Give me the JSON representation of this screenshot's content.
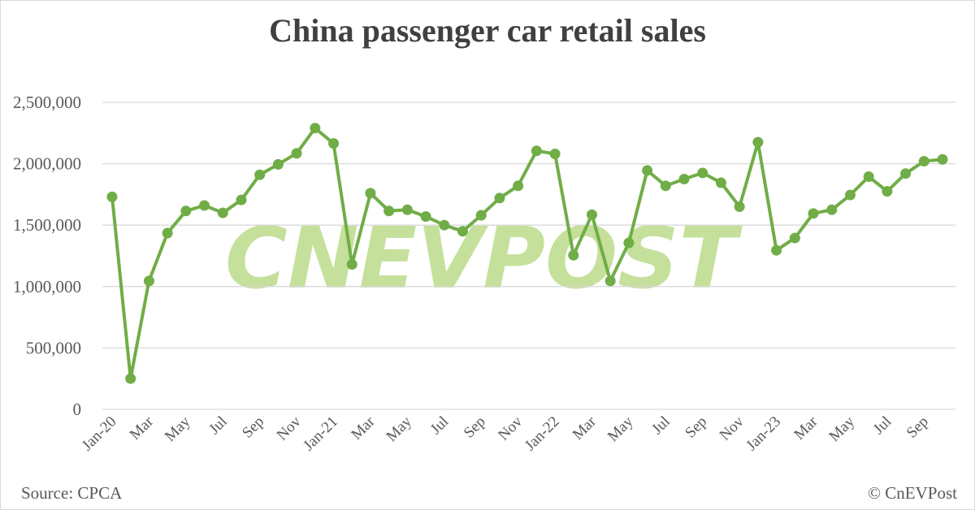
{
  "title": "China passenger car retail sales",
  "source": "Source: CPCA",
  "copyright": "© CnEVPost",
  "watermark": "CNEVPOST",
  "colors": {
    "line": "#70ad47",
    "watermark": "#c5e09b",
    "gridline": "#d9d9d9",
    "text": "#595959",
    "title": "#404040"
  },
  "y_axis": {
    "ticks": [
      "0",
      "500,000",
      "1,000,000",
      "1,500,000",
      "2,000,000",
      "2,500,000"
    ]
  },
  "x_axis": {
    "tick_labels": [
      "Jan-20",
      "Mar",
      "May",
      "Jul",
      "Sep",
      "Nov",
      "Jan-21",
      "Mar",
      "May",
      "Jul",
      "Sep",
      "Nov",
      "Jan-22",
      "Mar",
      "May",
      "Jul",
      "Sep",
      "Nov",
      "Jan-23",
      "Mar",
      "May",
      "Jul",
      "Sep"
    ]
  },
  "chart_data": {
    "type": "line",
    "title": "China passenger car retail sales",
    "xlabel": "",
    "ylabel": "",
    "ylim": [
      0,
      2500000
    ],
    "grid": true,
    "legend": null,
    "x": [
      "Jan-20",
      "Feb-20",
      "Mar-20",
      "Apr-20",
      "May-20",
      "Jun-20",
      "Jul-20",
      "Aug-20",
      "Sep-20",
      "Oct-20",
      "Nov-20",
      "Dec-20",
      "Jan-21",
      "Feb-21",
      "Mar-21",
      "Apr-21",
      "May-21",
      "Jun-21",
      "Jul-21",
      "Aug-21",
      "Sep-21",
      "Oct-21",
      "Nov-21",
      "Dec-21",
      "Jan-22",
      "Feb-22",
      "Mar-22",
      "Apr-22",
      "May-22",
      "Jun-22",
      "Jul-22",
      "Aug-22",
      "Sep-22",
      "Oct-22",
      "Nov-22",
      "Dec-22",
      "Jan-23",
      "Feb-23",
      "Mar-23",
      "Apr-23",
      "May-23",
      "Jun-23",
      "Jul-23",
      "Aug-23",
      "Sep-23",
      "Oct-23"
    ],
    "series": [
      {
        "name": "Retail sales",
        "values": [
          1730000,
          250000,
          1045000,
          1435000,
          1615000,
          1660000,
          1600000,
          1705000,
          1910000,
          1995000,
          2085000,
          2290000,
          2165000,
          1180000,
          1760000,
          1615000,
          1625000,
          1570000,
          1500000,
          1450000,
          1580000,
          1720000,
          1820000,
          2105000,
          2080000,
          1255000,
          1585000,
          1045000,
          1355000,
          1945000,
          1820000,
          1875000,
          1925000,
          1845000,
          1650000,
          2175000,
          1295000,
          1395000,
          1595000,
          1625000,
          1745000,
          1895000,
          1775000,
          1920000,
          2020000,
          2035000
        ]
      }
    ],
    "source": "Source: CPCA",
    "annotation": "© CnEVPost"
  }
}
